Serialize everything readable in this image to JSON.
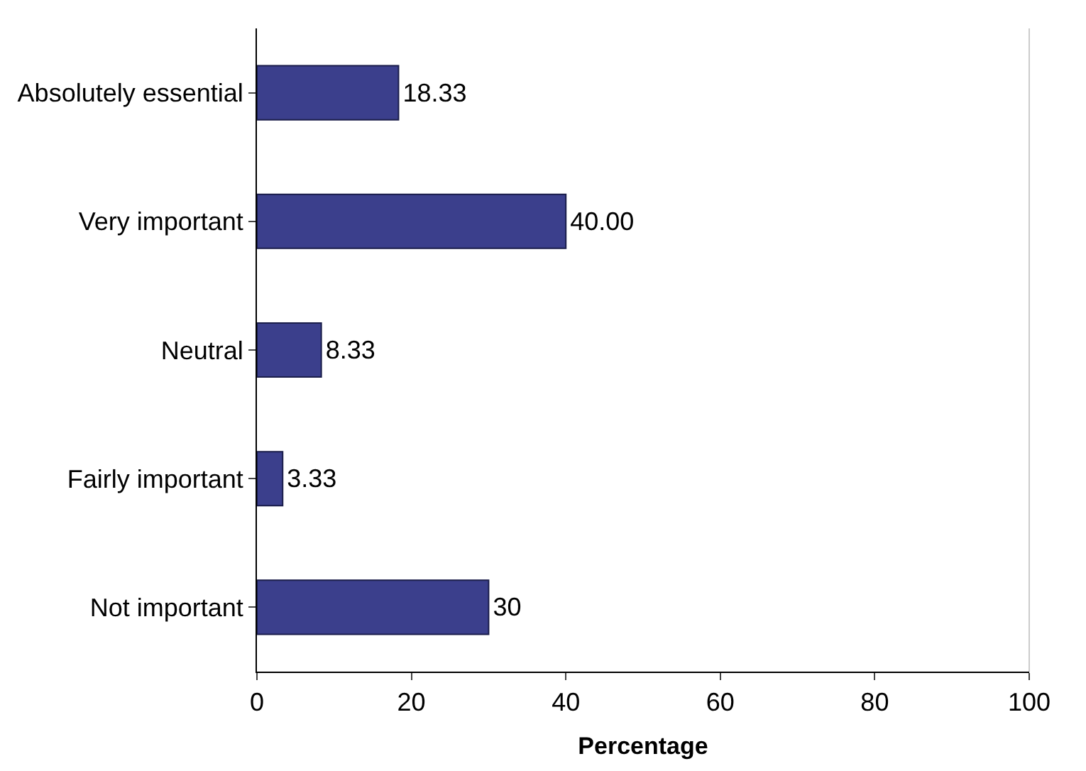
{
  "chart_data": {
    "type": "bar",
    "orientation": "horizontal",
    "xlabel": "Percentage",
    "categories": [
      "Absolutely essential",
      "Very important",
      "Neutral",
      "Fairly important",
      "Not important"
    ],
    "values": [
      18.33,
      40.0,
      8.33,
      3.33,
      30
    ],
    "value_labels": [
      "18.33",
      "40.00",
      "8.33",
      "3.33",
      "30"
    ],
    "color": "#3b3f8c",
    "xlim": [
      0,
      100
    ],
    "xticks": [
      0,
      20,
      40,
      60,
      80,
      100
    ]
  }
}
